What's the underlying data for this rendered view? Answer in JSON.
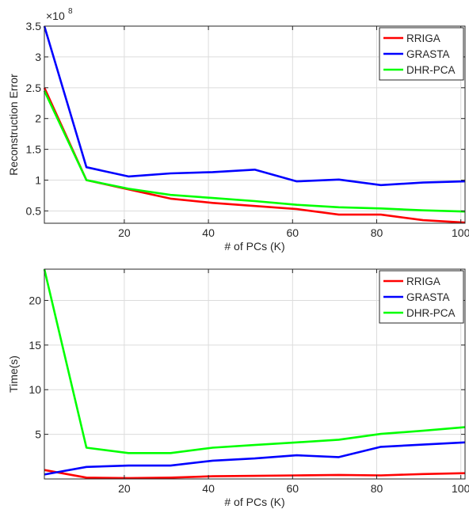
{
  "chart_data": [
    {
      "type": "line",
      "xlabel": "# of PCs (K)",
      "ylabel": "Reconstruction Error",
      "exponent_label": "×10",
      "exponent_power": "8",
      "xlim": [
        1,
        101
      ],
      "ylim": [
        0.3,
        3.5
      ],
      "xticks": [
        20,
        40,
        60,
        80,
        100
      ],
      "yticks": [
        0.5,
        1,
        1.5,
        2,
        2.5,
        3,
        3.5
      ],
      "grid": true,
      "legend_position": "top-right",
      "series": [
        {
          "name": "RRIGA",
          "color": "#ff0000",
          "x": [
            1,
            11,
            21,
            31,
            41,
            51,
            61,
            71,
            81,
            91,
            101
          ],
          "y": [
            2.5,
            1.0,
            0.85,
            0.7,
            0.63,
            0.58,
            0.53,
            0.44,
            0.44,
            0.35,
            0.31
          ]
        },
        {
          "name": "GRASTA",
          "color": "#0000ff",
          "x": [
            1,
            11,
            21,
            31,
            41,
            51,
            61,
            71,
            81,
            91,
            101
          ],
          "y": [
            3.5,
            1.21,
            1.06,
            1.11,
            1.13,
            1.17,
            0.98,
            1.01,
            0.92,
            0.96,
            0.98
          ]
        },
        {
          "name": "DHR-PCA",
          "color": "#00ff00",
          "x": [
            1,
            11,
            21,
            31,
            41,
            51,
            61,
            71,
            81,
            91,
            101
          ],
          "y": [
            2.45,
            1.0,
            0.86,
            0.76,
            0.71,
            0.66,
            0.6,
            0.56,
            0.54,
            0.51,
            0.49
          ]
        }
      ]
    },
    {
      "type": "line",
      "xlabel": "# of PCs (K)",
      "ylabel": "Time(s)",
      "xlim": [
        1,
        101
      ],
      "ylim": [
        0,
        23.5
      ],
      "xticks": [
        20,
        40,
        60,
        80,
        100
      ],
      "yticks": [
        5,
        10,
        15,
        20
      ],
      "grid": true,
      "legend_position": "top-right",
      "series": [
        {
          "name": "RRIGA",
          "color": "#ff0000",
          "x": [
            1,
            11,
            21,
            31,
            41,
            51,
            61,
            71,
            81,
            91,
            101
          ],
          "y": [
            1.0,
            0.15,
            0.1,
            0.15,
            0.3,
            0.35,
            0.4,
            0.45,
            0.4,
            0.55,
            0.65
          ]
        },
        {
          "name": "GRASTA",
          "color": "#0000ff",
          "x": [
            1,
            11,
            21,
            31,
            41,
            51,
            61,
            71,
            81,
            91,
            101
          ],
          "y": [
            0.5,
            1.35,
            1.5,
            1.5,
            2.05,
            2.3,
            2.65,
            2.45,
            3.6,
            3.85,
            4.1
          ]
        },
        {
          "name": "DHR-PCA",
          "color": "#00ff00",
          "x": [
            1,
            11,
            21,
            31,
            41,
            51,
            61,
            71,
            81,
            91,
            101
          ],
          "y": [
            23.5,
            3.5,
            2.9,
            2.9,
            3.5,
            3.8,
            4.1,
            4.4,
            5.05,
            5.4,
            5.8
          ]
        }
      ]
    }
  ]
}
